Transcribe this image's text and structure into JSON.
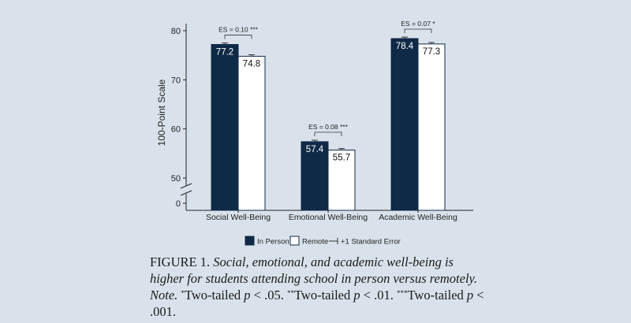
{
  "chart_data": {
    "type": "bar",
    "categories": [
      "Social Well-Being",
      "Emotional Well-Being",
      "Academic Well-Being"
    ],
    "series": [
      {
        "name": "In Person",
        "values": [
          77.2,
          57.4,
          78.4
        ],
        "color": "#0f2a47"
      },
      {
        "name": "Remote",
        "values": [
          74.8,
          55.7,
          77.3
        ],
        "color": "#ffffff"
      }
    ],
    "errors": {
      "In Person": [
        0.3,
        0.3,
        0.3
      ],
      "Remote": [
        0.3,
        0.3,
        0.3
      ]
    },
    "data_labels": {
      "In Person": [
        "77.2",
        "57.4",
        "78.4"
      ],
      "Remote": [
        "74.8",
        "55.7",
        "77.3"
      ]
    },
    "effect_sizes": [
      "ES = 0.10 ***",
      "ES = 0.08 ***",
      "ES = 0.07 *"
    ],
    "ylabel": "100-Point Scale",
    "yticks": [
      "0",
      "50",
      "60",
      "70",
      "80"
    ],
    "ylim": [
      45,
      81
    ],
    "axis_break": true,
    "legend": {
      "position": "bottom",
      "items": [
        "In Person",
        "Remote",
        "+1 Standard Error"
      ]
    },
    "grid": false
  },
  "caption": {
    "figure_label": "FIGURE 1.",
    "figure_title": "Social, emotional, and academic well-being is higher for students attending school in person versus remotely.",
    "note_label": "Note.",
    "note_parts": [
      {
        "sup": "*",
        "text": "Two-tailed "
      },
      {
        "sup": "**",
        "text": "Two-tailed "
      },
      {
        "sup": "***",
        "text": "Two-tailed "
      }
    ],
    "note_p": "p",
    "note_thresholds": [
      "< .05.",
      "< .01.",
      "< .001."
    ]
  }
}
